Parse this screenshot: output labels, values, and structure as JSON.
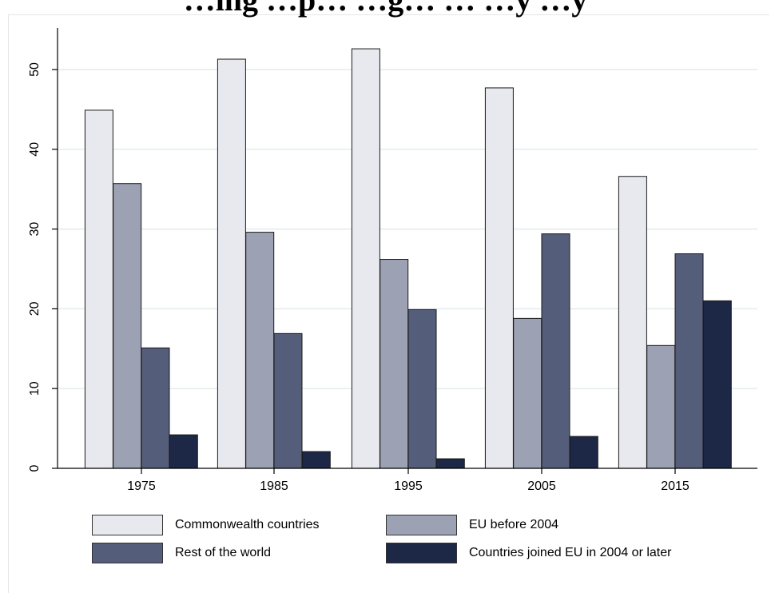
{
  "chart_data": {
    "type": "bar",
    "title": "…ing …p… …g… … …y …y",
    "categories": [
      "1975",
      "1985",
      "1995",
      "2005",
      "2015"
    ],
    "series": [
      {
        "name": "Commonwealth countries",
        "color": "#e8e9ee",
        "values": [
          44.9,
          51.3,
          52.6,
          47.7,
          36.6
        ]
      },
      {
        "name": "EU before 2004",
        "color": "#9ca2b3",
        "values": [
          35.7,
          29.6,
          26.2,
          18.8,
          15.4
        ]
      },
      {
        "name": "Rest of the world",
        "color": "#545d79",
        "values": [
          15.1,
          16.9,
          19.9,
          29.4,
          26.9
        ]
      },
      {
        "name": "Countries joined EU in 2004 or later",
        "color": "#1d2746",
        "values": [
          4.2,
          2.1,
          1.2,
          4.0,
          21.0
        ]
      }
    ],
    "yticks": [
      0,
      10,
      20,
      30,
      40,
      50
    ],
    "ylim": [
      0,
      55
    ],
    "grid": true,
    "legend_position": "bottom"
  }
}
